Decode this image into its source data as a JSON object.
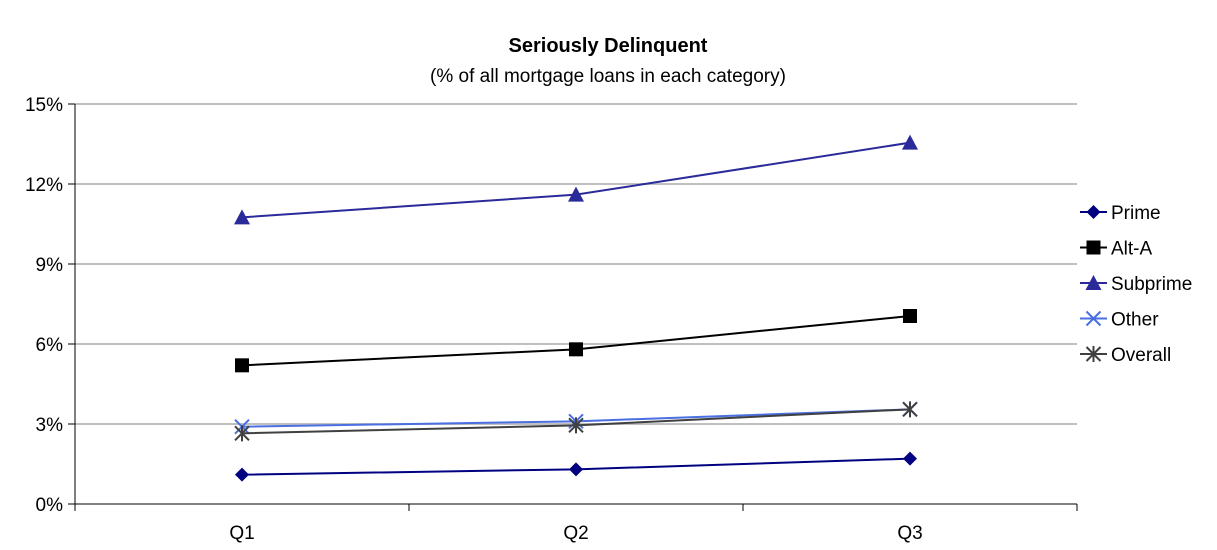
{
  "chart_data": {
    "type": "line",
    "title": "Seriously Delinquent",
    "subtitle": "(% of all mortgage loans in each category)",
    "xlabel": "",
    "ylabel": "",
    "categories": [
      "Q1",
      "Q2",
      "Q3"
    ],
    "ylim": [
      0,
      15
    ],
    "yticks": [
      "0%",
      "3%",
      "6%",
      "9%",
      "12%",
      "15%"
    ],
    "grid": true,
    "legend_position": "right",
    "series": [
      {
        "name": "Prime",
        "values": [
          1.1,
          1.3,
          1.7
        ],
        "color": "#000080",
        "marker": "diamond"
      },
      {
        "name": "Alt-A",
        "values": [
          5.2,
          5.8,
          7.05
        ],
        "color": "#000000",
        "marker": "square"
      },
      {
        "name": "Subprime",
        "values": [
          10.75,
          11.6,
          13.55
        ],
        "color": "#2a2a9a",
        "marker": "triangle"
      },
      {
        "name": "Other",
        "values": [
          2.9,
          3.1,
          3.55
        ],
        "color": "#4a6fe0",
        "marker": "x"
      },
      {
        "name": "Overall",
        "values": [
          2.65,
          2.95,
          3.55
        ],
        "color": "#404040",
        "marker": "asterisk"
      }
    ]
  }
}
